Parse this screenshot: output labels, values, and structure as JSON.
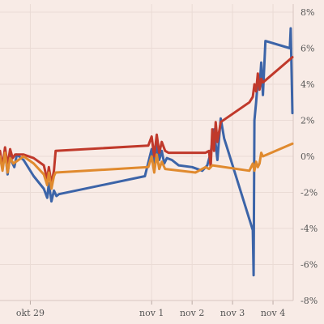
{
  "chart_data": {
    "type": "line",
    "title": "",
    "xlabel": "",
    "ylabel": "",
    "x_ticks": [
      {
        "date": "2016-10-29",
        "label": "okt 29"
      },
      {
        "date": "2016-11-01",
        "label": "nov 1"
      },
      {
        "date": "2016-11-02",
        "label": "nov 2"
      },
      {
        "date": "2016-11-03",
        "label": "nov 3"
      },
      {
        "date": "2016-11-04",
        "label": "nov 4"
      }
    ],
    "x_range": [
      "2016-10-28 06:00",
      "2016-11-04 12:00"
    ],
    "y_ticks": [
      8,
      6,
      4,
      2,
      0,
      -2,
      -4,
      -6,
      -8
    ],
    "y_tick_labels": [
      "8%",
      "6%",
      "4%",
      "2%",
      "0%",
      "-2%",
      "-4%",
      "-6%",
      "-8%"
    ],
    "ylim": [
      -8,
      8
    ],
    "grid": true,
    "y_axis_position": "right",
    "series": [
      {
        "color": "#3c64a8",
        "points": [
          [
            "2016-10-28 06:00",
            0.1
          ],
          [
            "2016-10-28 07:30",
            -0.4
          ],
          [
            "2016-10-28 09:00",
            0.3
          ],
          [
            "2016-10-28 10:30",
            -1.0
          ],
          [
            "2016-10-28 12:00",
            0.2
          ],
          [
            "2016-10-28 13:00",
            -0.3
          ],
          [
            "2016-10-28 14:30",
            -0.6
          ],
          [
            "2016-10-28 16:00",
            0.1
          ],
          [
            "2016-10-28 20:00",
            -0.2
          ],
          [
            "2016-10-29 02:00",
            -1.1
          ],
          [
            "2016-10-29 08:00",
            -1.8
          ],
          [
            "2016-10-29 10:00",
            -2.3
          ],
          [
            "2016-10-29 11:00",
            -1.5
          ],
          [
            "2016-10-29 12:30",
            -2.5
          ],
          [
            "2016-10-29 14:00",
            -1.9
          ],
          [
            "2016-10-29 15:30",
            -2.2
          ],
          [
            "2016-10-29 17:00",
            -2.1
          ],
          [
            "2016-10-31 20:00",
            -1.1
          ],
          [
            "2016-11-01 00:00",
            0.4
          ],
          [
            "2016-11-01 01:30",
            -0.6
          ],
          [
            "2016-11-01 03:00",
            0.7
          ],
          [
            "2016-11-01 04:30",
            -0.2
          ],
          [
            "2016-11-01 06:00",
            0.3
          ],
          [
            "2016-11-01 07:30",
            -0.4
          ],
          [
            "2016-11-01 09:00",
            -0.1
          ],
          [
            "2016-11-01 12:00",
            -0.2
          ],
          [
            "2016-11-01 16:00",
            -0.5
          ],
          [
            "2016-11-02 00:00",
            -0.6
          ],
          [
            "2016-11-02 06:00",
            -0.8
          ],
          [
            "2016-11-02 09:00",
            -0.5
          ],
          [
            "2016-11-02 11:00",
            0.2
          ],
          [
            "2016-11-02 13:00",
            1.5
          ],
          [
            "2016-11-02 15:00",
            -0.2
          ],
          [
            "2016-11-02 16:00",
            1.0
          ],
          [
            "2016-11-02 17:00",
            2.1
          ],
          [
            "2016-11-02 19:00",
            1.0
          ],
          [
            "2016-11-02 21:00",
            0.4
          ],
          [
            "2016-11-03 12:00",
            -4.1
          ],
          [
            "2016-11-03 12:30",
            -6.6
          ],
          [
            "2016-11-03 13:00",
            2.0
          ],
          [
            "2016-11-03 14:00",
            3.0
          ],
          [
            "2016-11-03 15:00",
            4.2
          ],
          [
            "2016-11-03 16:00",
            3.8
          ],
          [
            "2016-11-03 17:00",
            5.2
          ],
          [
            "2016-11-03 18:00",
            3.4
          ],
          [
            "2016-11-03 19:30",
            6.4
          ],
          [
            "2016-11-04 10:00",
            6.0
          ],
          [
            "2016-11-04 10:30",
            7.1
          ],
          [
            "2016-11-04 11:30",
            2.4
          ]
        ]
      },
      {
        "color": "#c0392b",
        "points": [
          [
            "2016-10-28 06:00",
            0.3
          ],
          [
            "2016-10-28 07:30",
            -0.6
          ],
          [
            "2016-10-28 09:00",
            0.5
          ],
          [
            "2016-10-28 10:30",
            -0.5
          ],
          [
            "2016-10-28 12:00",
            0.4
          ],
          [
            "2016-10-28 13:30",
            -0.1
          ],
          [
            "2016-10-28 15:00",
            0.1
          ],
          [
            "2016-10-28 20:00",
            0.1
          ],
          [
            "2016-10-29 02:00",
            -0.1
          ],
          [
            "2016-10-29 08:00",
            -0.5
          ],
          [
            "2016-10-29 10:00",
            -1.3
          ],
          [
            "2016-10-29 11:00",
            -0.6
          ],
          [
            "2016-10-29 12:30",
            -1.5
          ],
          [
            "2016-10-29 14:00",
            -0.8
          ],
          [
            "2016-10-29 15:00",
            0.3
          ],
          [
            "2016-10-31 22:00",
            0.6
          ],
          [
            "2016-11-01 00:00",
            1.1
          ],
          [
            "2016-11-01 01:30",
            0.0
          ],
          [
            "2016-11-01 03:00",
            1.2
          ],
          [
            "2016-11-01 04:30",
            0.2
          ],
          [
            "2016-11-01 06:00",
            0.8
          ],
          [
            "2016-11-01 08:00",
            0.3
          ],
          [
            "2016-11-01 10:00",
            0.2
          ],
          [
            "2016-11-02 08:00",
            0.2
          ],
          [
            "2016-11-02 10:00",
            0.3
          ],
          [
            "2016-11-02 11:00",
            -0.6
          ],
          [
            "2016-11-02 12:00",
            1.5
          ],
          [
            "2016-11-02 13:00",
            0.3
          ],
          [
            "2016-11-02 14:00",
            1.9
          ],
          [
            "2016-11-02 15:00",
            0.8
          ],
          [
            "2016-11-02 17:00",
            1.9
          ],
          [
            "2016-11-03 10:00",
            3.0
          ],
          [
            "2016-11-03 12:00",
            3.3
          ],
          [
            "2016-11-03 13:00",
            4.0
          ],
          [
            "2016-11-03 14:00",
            3.6
          ],
          [
            "2016-11-03 15:00",
            4.6
          ],
          [
            "2016-11-03 16:00",
            3.7
          ],
          [
            "2016-11-03 17:00",
            4.3
          ],
          [
            "2016-11-03 18:00",
            4.1
          ],
          [
            "2016-11-04 11:30",
            5.5
          ]
        ]
      },
      {
        "color": "#e08a2e",
        "points": [
          [
            "2016-10-28 06:00",
            0.0
          ],
          [
            "2016-10-28 07:30",
            -0.8
          ],
          [
            "2016-10-28 09:00",
            0.2
          ],
          [
            "2016-10-28 10:30",
            -0.9
          ],
          [
            "2016-10-28 12:00",
            -0.1
          ],
          [
            "2016-10-28 14:00",
            -0.4
          ],
          [
            "2016-10-28 20:00",
            0.0
          ],
          [
            "2016-10-29 02:00",
            -0.4
          ],
          [
            "2016-10-29 08:00",
            -1.0
          ],
          [
            "2016-10-29 10:00",
            -1.6
          ],
          [
            "2016-10-29 11:00",
            -0.9
          ],
          [
            "2016-10-29 12:30",
            -1.8
          ],
          [
            "2016-10-29 14:00",
            -1.1
          ],
          [
            "2016-10-29 15:00",
            -0.9
          ],
          [
            "2016-10-31 22:00",
            -0.6
          ],
          [
            "2016-11-01 00:00",
            0.0
          ],
          [
            "2016-11-01 01:30",
            -0.9
          ],
          [
            "2016-11-01 03:00",
            0.1
          ],
          [
            "2016-11-01 04:30",
            -0.7
          ],
          [
            "2016-11-01 06:00",
            -0.3
          ],
          [
            "2016-11-01 08:00",
            -0.7
          ],
          [
            "2016-11-02 02:00",
            -0.9
          ],
          [
            "2016-11-02 08:00",
            -0.6
          ],
          [
            "2016-11-02 10:00",
            -0.7
          ],
          [
            "2016-11-02 12:00",
            -0.5
          ],
          [
            "2016-11-03 10:00",
            -0.8
          ],
          [
            "2016-11-03 12:00",
            -0.4
          ],
          [
            "2016-11-03 13:00",
            -0.8
          ],
          [
            "2016-11-03 14:00",
            -0.3
          ],
          [
            "2016-11-03 15:00",
            -0.6
          ],
          [
            "2016-11-03 16:00",
            -0.4
          ],
          [
            "2016-11-03 17:00",
            0.2
          ],
          [
            "2016-11-03 18:00",
            0.0
          ],
          [
            "2016-11-04 11:30",
            0.7
          ]
        ]
      }
    ]
  }
}
